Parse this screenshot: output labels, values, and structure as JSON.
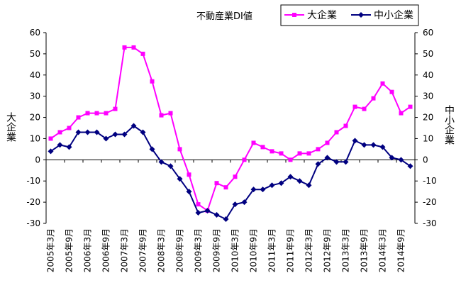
{
  "chart_data": {
    "type": "line",
    "title": "不動産業DI値",
    "y_label": "大企業",
    "y2_label": "中小企業",
    "xlabel": "",
    "x_tick_labels": [
      "2005年3月",
      "2005年9月",
      "2006年3月",
      "2006年9月",
      "2007年3月",
      "2007年9月",
      "2008年3月",
      "2008年9月",
      "2009年3月",
      "2009年9月",
      "2010年3月",
      "2010年9月",
      "2011年3月",
      "2011年9月",
      "2012年3月",
      "2012年9月",
      "2013年3月",
      "2013年9月",
      "2014年3月",
      "2014年9月"
    ],
    "ylim": [
      -30,
      60
    ],
    "y2lim": [
      -30,
      60
    ],
    "y_ticks": [
      60,
      50,
      40,
      30,
      20,
      10,
      0,
      -10,
      -20,
      -30
    ],
    "y2_ticks": [
      60,
      50,
      40,
      30,
      20,
      10,
      0,
      -10,
      -20,
      -30
    ],
    "grid": false,
    "legend_position": "top-right",
    "series": [
      {
        "name": "大企業",
        "axis": "left",
        "color": "#FF00FF",
        "marker": "square",
        "values": [
          10,
          13,
          15,
          20,
          22,
          22,
          22,
          24,
          53,
          53,
          50,
          37,
          21,
          22,
          5,
          -7,
          -21,
          -24,
          -11,
          -13,
          -8,
          0,
          8,
          6,
          4,
          3,
          0,
          3,
          3,
          5,
          8,
          13,
          16,
          25,
          24,
          29,
          36,
          32,
          22,
          25
        ]
      },
      {
        "name": "中小企業",
        "axis": "right",
        "color": "#000080",
        "marker": "diamond",
        "values": [
          4,
          7,
          6,
          13,
          13,
          13,
          10,
          12,
          12,
          16,
          13,
          5,
          -1,
          -3,
          -9,
          -15,
          -25,
          -24,
          -26,
          -28,
          -21,
          -20,
          -14,
          -14,
          -12,
          -11,
          -8,
          -10,
          -12,
          -2,
          1,
          -1,
          -1,
          9,
          7,
          7,
          6,
          1,
          0,
          -3
        ]
      }
    ]
  }
}
